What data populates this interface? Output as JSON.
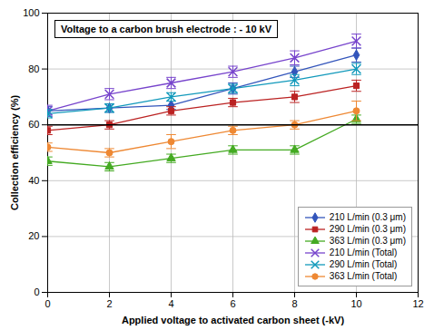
{
  "chart_data": {
    "type": "line",
    "title": "Voltage to a carbon brush electrode : - 10 kV",
    "x_label": "Applied voltage to activated carbon sheet (-kV)",
    "y_label": "Collection efficiency (%)",
    "x": [
      0,
      2,
      4,
      6,
      8,
      10
    ],
    "series": [
      {
        "name": "210 L/min (0.3 μm)",
        "color": "#3355bb",
        "marker": "diamond",
        "line_style": "solid",
        "values": [
          65,
          66,
          67,
          73,
          79,
          85
        ],
        "yerr": [
          1.5,
          1.5,
          1.5,
          2.0,
          2.0,
          2.5
        ]
      },
      {
        "name": "290 L/min (0.3 μm)",
        "color": "#bb2222",
        "marker": "square",
        "line_style": "solid",
        "values": [
          58,
          60,
          65,
          68,
          70,
          74
        ],
        "yerr": [
          1.5,
          1.5,
          1.5,
          1.5,
          2.0,
          2.0
        ]
      },
      {
        "name": "363 L/min (0.3 μm)",
        "color": "#44aa22",
        "marker": "triangle",
        "line_style": "solid",
        "values": [
          47,
          45,
          48,
          51,
          51,
          62
        ],
        "yerr": [
          1.5,
          1.5,
          1.5,
          1.5,
          1.5,
          1.5
        ]
      },
      {
        "name": "210 L/min (Total)",
        "color": "#7744cc",
        "marker": "x",
        "line_style": "solid",
        "values": [
          65,
          71,
          75,
          79,
          84,
          90
        ],
        "yerr": [
          2.0,
          2.0,
          2.0,
          2.0,
          2.5,
          2.5
        ]
      },
      {
        "name": "290 L/min (Total)",
        "color": "#1199bb",
        "marker": "x",
        "line_style": "solid",
        "values": [
          64,
          66,
          70,
          73,
          76,
          80
        ],
        "yerr": [
          1.5,
          1.5,
          1.5,
          1.5,
          2.0,
          2.0
        ]
      },
      {
        "name": "363 L/min (Total)",
        "color": "#ee8833",
        "marker": "circle",
        "line_style": "solid",
        "values": [
          52,
          50,
          54,
          58,
          60,
          65
        ],
        "yerr": [
          1.5,
          1.5,
          2.5,
          1.5,
          1.5,
          3.5
        ]
      }
    ],
    "xlim": [
      0,
      12
    ],
    "ylim": [
      0,
      100
    ],
    "xticks": [
      0,
      2,
      4,
      6,
      8,
      10,
      12
    ],
    "yticks": [
      0,
      20,
      40,
      60,
      80,
      100
    ],
    "hline": 60,
    "grid": true,
    "legend": "lower right"
  }
}
